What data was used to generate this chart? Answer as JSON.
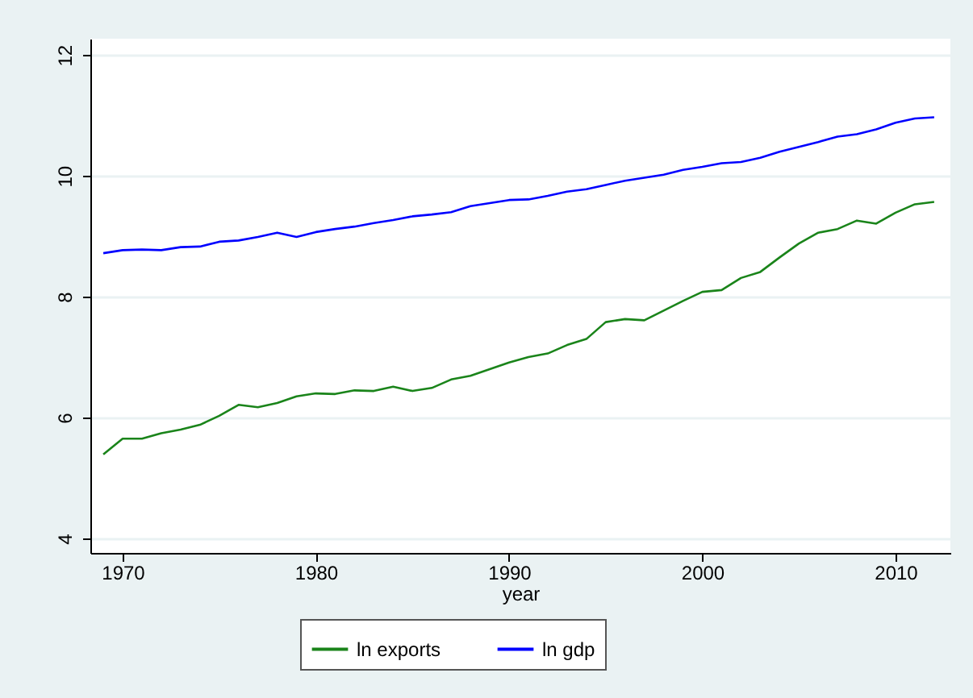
{
  "chart_data": {
    "type": "line",
    "xlabel": "year",
    "x": [
      1969,
      1970,
      1971,
      1972,
      1973,
      1974,
      1975,
      1976,
      1977,
      1978,
      1979,
      1980,
      1981,
      1982,
      1983,
      1984,
      1985,
      1986,
      1987,
      1988,
      1989,
      1990,
      1991,
      1992,
      1993,
      1994,
      1995,
      1996,
      1997,
      1998,
      1999,
      2000,
      2001,
      2002,
      2003,
      2004,
      2005,
      2006,
      2007,
      2008,
      2009,
      2010,
      2011,
      2012
    ],
    "series": [
      {
        "name": "ln exports",
        "color": "#1a841a",
        "values": [
          5.39,
          5.65,
          5.65,
          5.74,
          5.8,
          5.88,
          6.03,
          6.21,
          6.17,
          6.24,
          6.35,
          6.4,
          6.39,
          6.45,
          6.44,
          6.51,
          6.44,
          6.49,
          6.63,
          6.69,
          6.8,
          6.91,
          7.0,
          7.06,
          7.2,
          7.3,
          7.58,
          7.63,
          7.61,
          7.77,
          7.93,
          8.08,
          8.11,
          8.31,
          8.41,
          8.65,
          8.88,
          9.06,
          9.12,
          9.26,
          9.21,
          9.39,
          9.53,
          9.57
        ]
      },
      {
        "name": "ln gdp",
        "color": "#0000ff",
        "values": [
          8.72,
          8.77,
          8.78,
          8.77,
          8.82,
          8.83,
          8.91,
          8.93,
          8.99,
          9.06,
          8.99,
          9.07,
          9.12,
          9.16,
          9.22,
          9.27,
          9.33,
          9.36,
          9.4,
          9.5,
          9.55,
          9.6,
          9.61,
          9.67,
          9.74,
          9.78,
          9.85,
          9.92,
          9.97,
          10.02,
          10.1,
          10.15,
          10.21,
          10.23,
          10.3,
          10.4,
          10.48,
          10.56,
          10.65,
          10.69,
          10.77,
          10.88,
          10.95,
          10.97
        ]
      }
    ],
    "xlim": [
      1968.33,
      2012.84
    ],
    "ylim": [
      3.76,
      12.27
    ],
    "xticks": [
      1970,
      1980,
      1990,
      2000,
      2010
    ],
    "yticks": [
      4,
      6,
      8,
      10,
      12
    ],
    "grid": "y",
    "legend": "bottom"
  }
}
